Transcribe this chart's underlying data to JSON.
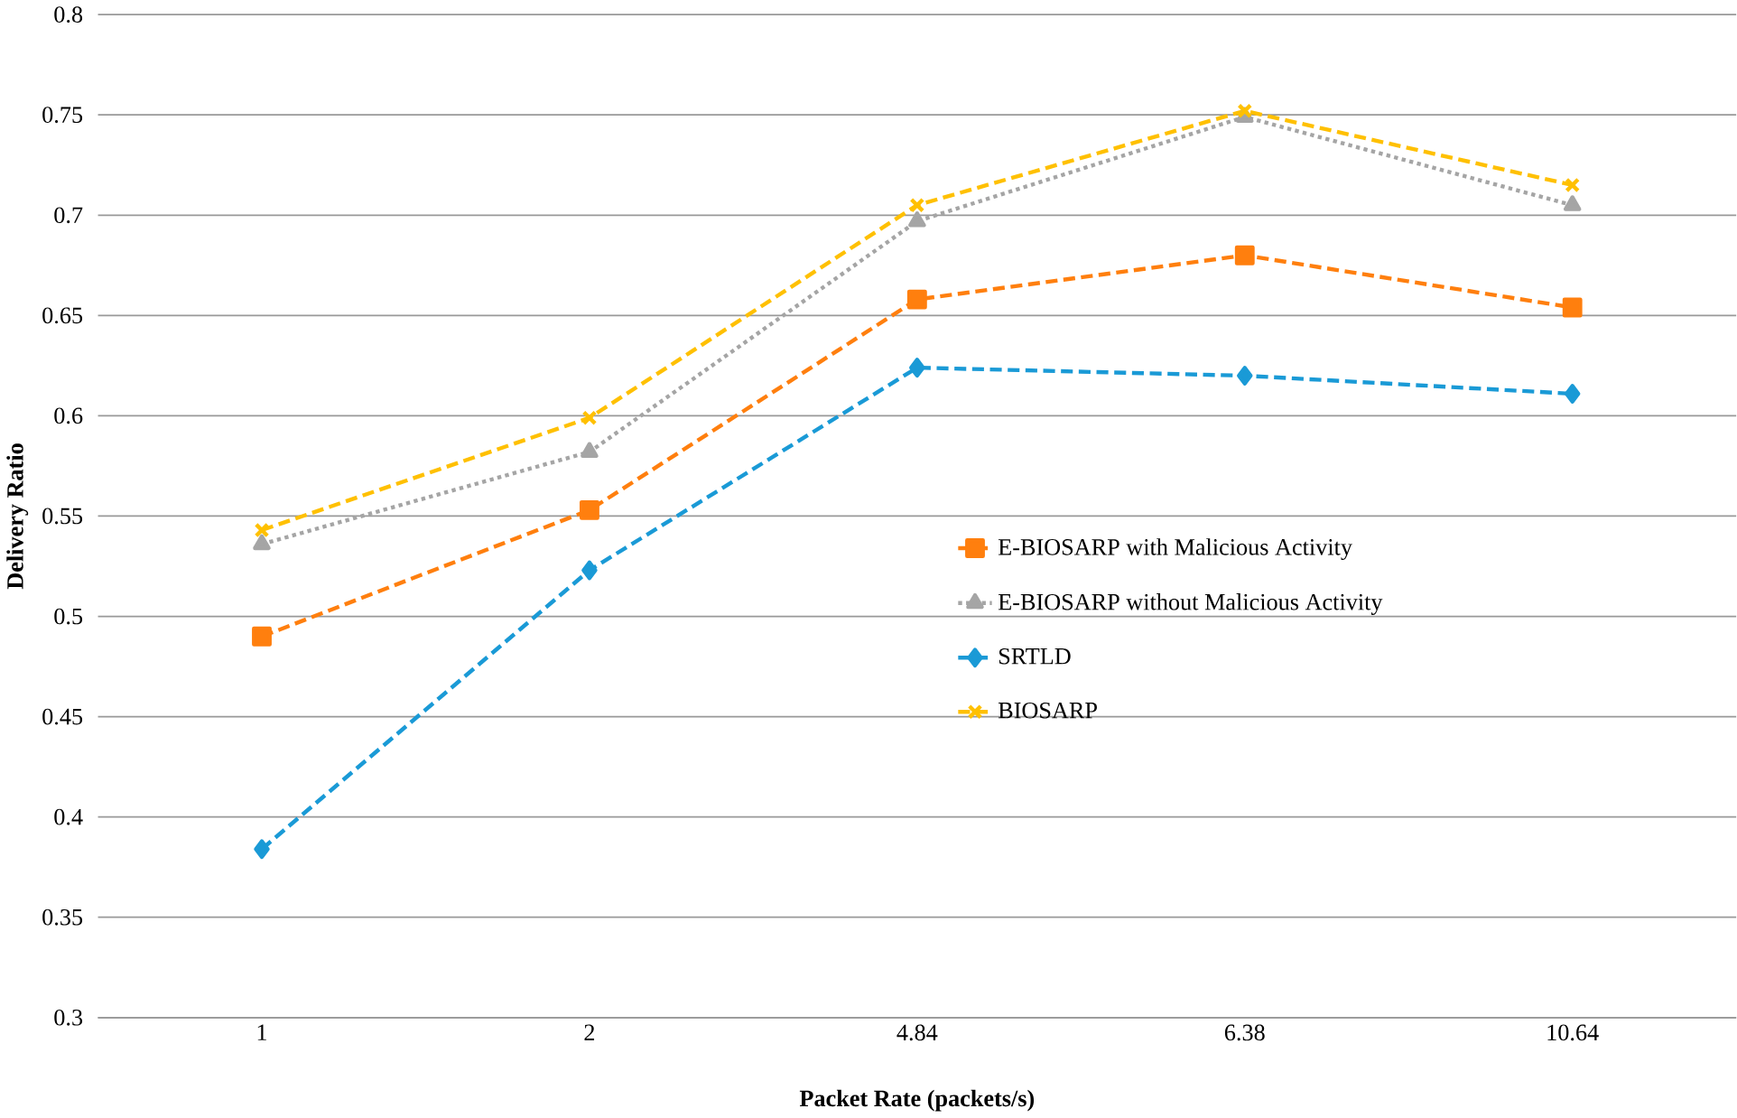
{
  "chart_data": {
    "type": "line",
    "xlabel": "Packet Rate (packets/s)",
    "ylabel": "Delivery Ratio",
    "categories": [
      "1",
      "2",
      "4.84",
      "6.38",
      "10.64"
    ],
    "ylim": [
      0.3,
      0.8
    ],
    "yticks": [
      {
        "value": 0.3,
        "label": "0.3"
      },
      {
        "value": 0.35,
        "label": "0.35"
      },
      {
        "value": 0.4,
        "label": "0.4"
      },
      {
        "value": 0.45,
        "label": "0.45"
      },
      {
        "value": 0.5,
        "label": "0.5"
      },
      {
        "value": 0.55,
        "label": "0.55"
      },
      {
        "value": 0.6,
        "label": "0.6"
      },
      {
        "value": 0.65,
        "label": "0.65"
      },
      {
        "value": 0.7,
        "label": "0.7"
      },
      {
        "value": 0.75,
        "label": "0.75"
      },
      {
        "value": 0.8,
        "label": "0.8"
      }
    ],
    "grid": "y",
    "legend": "right",
    "series": [
      {
        "name": "E-BIOSARP with Malicious Activity",
        "color": "#ff7f0e",
        "marker": "square",
        "line_style": "dashed",
        "values": [
          0.49,
          0.553,
          0.658,
          0.68,
          0.654
        ]
      },
      {
        "name": "E-BIOSARP without Malicious Activity",
        "color": "#a5a5a5",
        "marker": "triangle",
        "line_style": "dotted",
        "values": [
          0.536,
          0.582,
          0.697,
          0.749,
          0.705
        ]
      },
      {
        "name": "SRTLD",
        "color": "#1a9ad6",
        "marker": "diamond",
        "line_style": "dashed",
        "values": [
          0.384,
          0.523,
          0.624,
          0.62,
          0.611
        ]
      },
      {
        "name": "BIOSARP",
        "color": "#ffc000",
        "marker": "cross",
        "line_style": "dashed",
        "values": [
          0.543,
          0.599,
          0.705,
          0.752,
          0.715
        ]
      }
    ]
  }
}
